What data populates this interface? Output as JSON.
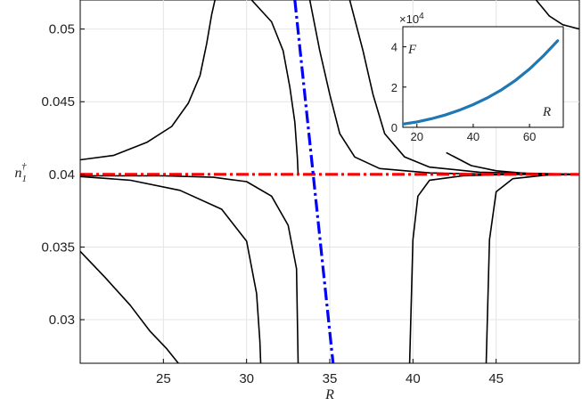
{
  "chart_data": [
    {
      "type": "line",
      "title": "",
      "xlabel": "R",
      "ylabel_base": "n",
      "ylabel_sub": "1",
      "ylabel_sup": "†",
      "xlim": [
        20,
        50
      ],
      "ylim": [
        0.027,
        0.052
      ],
      "xticks": [
        25,
        30,
        35,
        40,
        45
      ],
      "xtick_labels": [
        "25",
        "30",
        "35",
        "40",
        "45"
      ],
      "yticks": [
        0.03,
        0.035,
        0.04,
        0.045,
        0.05
      ],
      "ytick_labels": [
        "0.03",
        "0.035",
        "0.04",
        "0.045",
        "0.05"
      ],
      "grid": true,
      "series": [
        {
          "color": "#ff0000",
          "style": "dash-dot",
          "x": [
            20,
            50
          ],
          "y": [
            0.04,
            0.04
          ]
        },
        {
          "color": "#0000ff",
          "style": "dash-dot",
          "x": [
            32.9,
            35.2
          ],
          "y": [
            0.052,
            0.027
          ]
        },
        {
          "color": "#000000",
          "style": "solid",
          "x": [
            20,
            22,
            24,
            25.5,
            26.5,
            27.2,
            27.6,
            27.9,
            28.1
          ],
          "y": [
            0.041,
            0.0413,
            0.0422,
            0.0433,
            0.0449,
            0.0468,
            0.049,
            0.051,
            0.052
          ]
        },
        {
          "color": "#000000",
          "style": "solid",
          "x": [
            20,
            23,
            26,
            28.5,
            30,
            30.6,
            30.8,
            30.85
          ],
          "y": [
            0.03985,
            0.0396,
            0.0389,
            0.0376,
            0.0354,
            0.0318,
            0.0285,
            0.027
          ]
        },
        {
          "color": "#000000",
          "style": "solid",
          "x": [
            20,
            21.5,
            23,
            24.2,
            25.2,
            25.9
          ],
          "y": [
            0.0347,
            0.0329,
            0.031,
            0.0292,
            0.028,
            0.027
          ]
        },
        {
          "color": "#000000",
          "style": "solid",
          "x": [
            30.3,
            31.5,
            32.2,
            32.6,
            32.9,
            33.05,
            33.1
          ],
          "y": [
            0.052,
            0.0505,
            0.0485,
            0.046,
            0.0436,
            0.0412,
            0.04
          ]
        },
        {
          "color": "#000000",
          "style": "solid",
          "x": [
            20,
            25,
            28,
            30,
            31.5,
            32.5,
            33.0,
            33.1
          ],
          "y": [
            0.0399,
            0.0399,
            0.0398,
            0.0395,
            0.0385,
            0.0365,
            0.0335,
            0.027
          ]
        },
        {
          "color": "#000000",
          "style": "solid",
          "x": [
            33.8,
            34.4,
            35.0,
            35.6,
            36.5,
            38,
            41,
            45,
            50
          ],
          "y": [
            0.052,
            0.0485,
            0.0455,
            0.0428,
            0.0412,
            0.0404,
            0.0401,
            0.04,
            0.04
          ]
        },
        {
          "color": "#000000",
          "style": "solid",
          "x": [
            36.2,
            37.0,
            37.6,
            38.3,
            39.5,
            41,
            44,
            50
          ],
          "y": [
            0.052,
            0.0485,
            0.0455,
            0.0428,
            0.0412,
            0.0405,
            0.04015,
            0.04
          ]
        },
        {
          "color": "#000000",
          "style": "solid",
          "x": [
            39.8,
            40.0,
            40.3,
            41,
            43,
            46,
            50
          ],
          "y": [
            0.027,
            0.0355,
            0.0385,
            0.0396,
            0.0399,
            0.04,
            0.04
          ]
        },
        {
          "color": "#000000",
          "style": "solid",
          "x": [
            42.0,
            43.5,
            45,
            47,
            50
          ],
          "y": [
            0.0415,
            0.0406,
            0.04025,
            0.04005,
            0.04
          ]
        },
        {
          "color": "#000000",
          "style": "solid",
          "x": [
            44.4,
            44.6,
            45.0,
            46,
            48,
            50
          ],
          "y": [
            0.027,
            0.0355,
            0.0388,
            0.0397,
            0.03995,
            0.04
          ]
        },
        {
          "color": "#000000",
          "style": "solid",
          "x": [
            47.4,
            48.2,
            49,
            50
          ],
          "y": [
            0.052,
            0.0509,
            0.0503,
            0.05
          ]
        }
      ]
    },
    {
      "type": "line",
      "title": "",
      "xlabel": "R",
      "ylabel": "F",
      "exponent_label": "×10",
      "exponent_power": "4",
      "xlim": [
        15,
        72
      ],
      "ylim": [
        0,
        50000
      ],
      "xticks": [
        20,
        40,
        60
      ],
      "xtick_labels": [
        "20",
        "40",
        "60"
      ],
      "yticks": [
        0,
        20000,
        40000
      ],
      "ytick_labels": [
        "0",
        "2",
        "4"
      ],
      "series": [
        {
          "color": "#1f77b4",
          "style": "solid",
          "x": [
            15,
            20,
            25,
            30,
            35,
            40,
            45,
            50,
            55,
            60,
            65,
            70
          ],
          "y": [
            1600,
            2700,
            4200,
            6100,
            8500,
            11300,
            14600,
            18600,
            23300,
            29000,
            35600,
            43000
          ]
        }
      ]
    }
  ]
}
